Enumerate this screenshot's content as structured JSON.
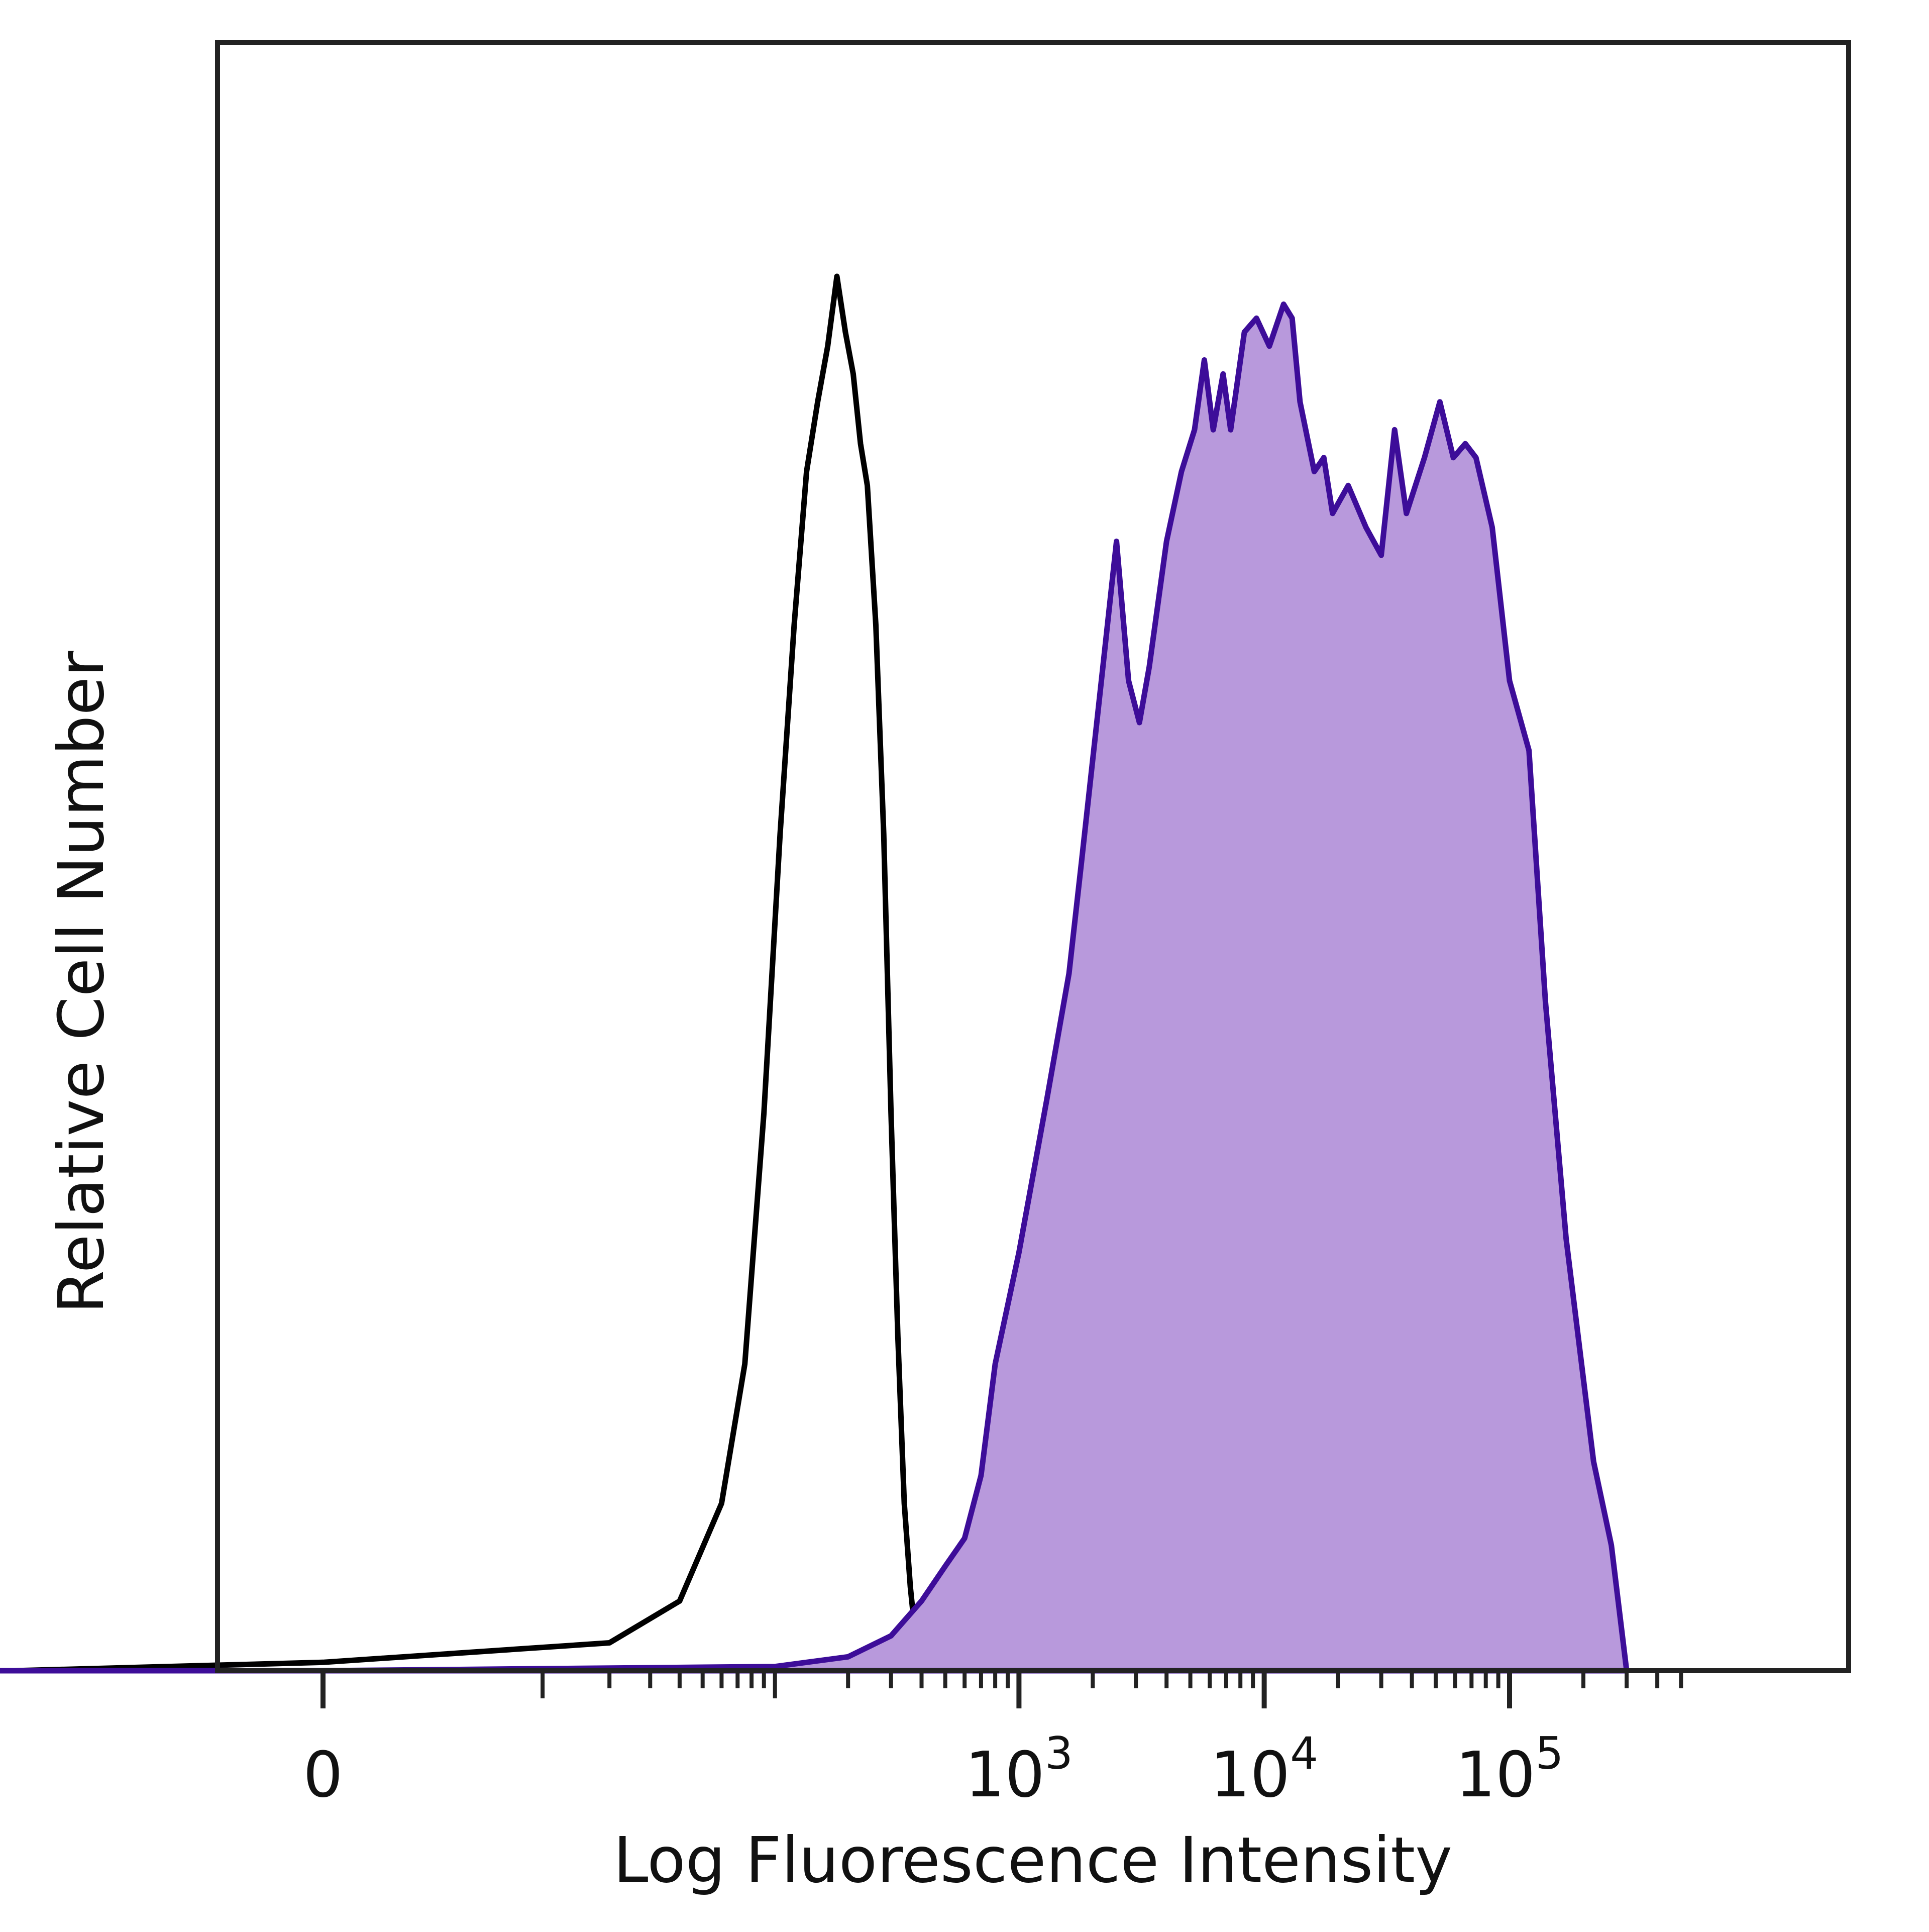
{
  "chart_data": {
    "type": "area",
    "title": "",
    "xlabel": "Log Fluorescence Intensity",
    "ylabel": "Relative Cell Number",
    "x_scale": "biexponential",
    "xlim": [
      -200,
      500000
    ],
    "ylim": [
      0,
      100
    ],
    "grid": false,
    "legend": "none",
    "x_ticks": [
      {
        "value": 0,
        "base": "0",
        "exp": ""
      },
      {
        "value": 1000,
        "base": "10",
        "exp": "3"
      },
      {
        "value": 10000,
        "base": "10",
        "exp": "4"
      },
      {
        "value": 100000,
        "base": "10",
        "exp": "5"
      }
    ],
    "series": [
      {
        "style": "outline",
        "color": "#000000",
        "points": [
          [
            -200,
            0
          ],
          [
            -100,
            0
          ],
          [
            -25,
            0
          ],
          [
            0,
            0.6
          ],
          [
            20,
            2
          ],
          [
            40,
            5
          ],
          [
            60,
            12
          ],
          [
            75,
            22
          ],
          [
            90,
            40
          ],
          [
            105,
            60
          ],
          [
            120,
            75
          ],
          [
            135,
            86
          ],
          [
            150,
            91
          ],
          [
            165,
            95
          ],
          [
            180,
            100
          ],
          [
            195,
            96
          ],
          [
            210,
            93
          ],
          [
            225,
            88
          ],
          [
            240,
            85
          ],
          [
            260,
            75
          ],
          [
            280,
            60
          ],
          [
            300,
            40
          ],
          [
            320,
            24
          ],
          [
            340,
            12
          ],
          [
            360,
            6
          ],
          [
            380,
            2
          ],
          [
            410,
            0.4
          ],
          [
            450,
            0
          ]
        ]
      },
      {
        "style": "filled",
        "color": "#3d0d99",
        "fill": "#b899dc",
        "points": [
          [
            -200,
            0
          ],
          [
            0,
            0
          ],
          [
            100,
            0.3
          ],
          [
            200,
            1
          ],
          [
            300,
            2.5
          ],
          [
            400,
            5
          ],
          [
            500,
            7.5
          ],
          [
            600,
            9.5
          ],
          [
            700,
            14
          ],
          [
            800,
            22
          ],
          [
            1000,
            30
          ],
          [
            1300,
            41
          ],
          [
            1600,
            50
          ],
          [
            1800,
            58
          ],
          [
            2200,
            72
          ],
          [
            2500,
            81
          ],
          [
            2800,
            71
          ],
          [
            3100,
            68
          ],
          [
            3400,
            72
          ],
          [
            4000,
            81
          ],
          [
            4600,
            86
          ],
          [
            5200,
            89
          ],
          [
            5700,
            94
          ],
          [
            6200,
            89
          ],
          [
            6800,
            93
          ],
          [
            7300,
            89
          ],
          [
            8300,
            96
          ],
          [
            9300,
            97
          ],
          [
            10500,
            95
          ],
          [
            12000,
            98
          ],
          [
            13000,
            97
          ],
          [
            14000,
            91
          ],
          [
            16000,
            86
          ],
          [
            17500,
            87
          ],
          [
            19000,
            83
          ],
          [
            22000,
            85
          ],
          [
            26000,
            82
          ],
          [
            30000,
            80
          ],
          [
            34000,
            89
          ],
          [
            38000,
            83
          ],
          [
            45000,
            87
          ],
          [
            52000,
            91
          ],
          [
            59000,
            87
          ],
          [
            66000,
            88
          ],
          [
            73000,
            87
          ],
          [
            85000,
            82
          ],
          [
            100000,
            71
          ],
          [
            120000,
            66
          ],
          [
            140000,
            48
          ],
          [
            170000,
            31
          ],
          [
            220000,
            15
          ],
          [
            260000,
            9
          ],
          [
            300000,
            0
          ]
        ]
      }
    ]
  }
}
